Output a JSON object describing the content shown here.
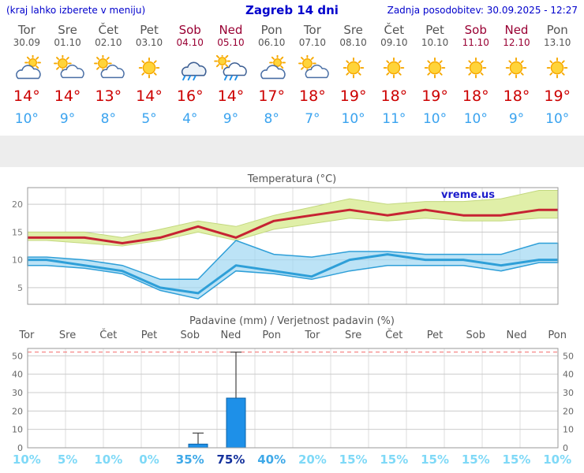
{
  "header": {
    "hint": "(kraj lahko izberete v meniju)",
    "title": "Zagreb 14 dni",
    "last_update": "Zadnja posodobitev: 30.09.2025 - 12:27"
  },
  "colors": {
    "header_blue": "#0000cc",
    "weekday_text": "#555555",
    "weekend_text": "#990033",
    "high_temp": "#cc0000",
    "low_temp": "#3aa3ef",
    "temp_line_high": "#c62333",
    "temp_band_high": "#e0efa8",
    "temp_line_low": "#2e9fd8",
    "temp_band_low": "#9fd7f2",
    "bar_fill": "#1e90e8",
    "prob_low": "#7fd9f7",
    "prob_med": "#3fa9e8",
    "prob_high": "#14319c"
  },
  "forecast": {
    "days": [
      {
        "day": "Tor",
        "date": "30.09",
        "weekend": false,
        "icon": "mostly-cloudy",
        "high": "14°",
        "low": "10°"
      },
      {
        "day": "Sre",
        "date": "01.10",
        "weekend": false,
        "icon": "partly-sunny",
        "high": "14°",
        "low": "9°"
      },
      {
        "day": "Čet",
        "date": "02.10",
        "weekend": false,
        "icon": "partly-sunny",
        "high": "13°",
        "low": "8°"
      },
      {
        "day": "Pet",
        "date": "03.10",
        "weekend": false,
        "icon": "sunny",
        "high": "14°",
        "low": "5°"
      },
      {
        "day": "Sob",
        "date": "04.10",
        "weekend": true,
        "icon": "rain",
        "high": "16°",
        "low": "4°"
      },
      {
        "day": "Ned",
        "date": "05.10",
        "weekend": true,
        "icon": "rain-sun",
        "high": "14°",
        "low": "9°"
      },
      {
        "day": "Pon",
        "date": "06.10",
        "weekend": false,
        "icon": "mostly-cloudy",
        "high": "17°",
        "low": "8°"
      },
      {
        "day": "Tor",
        "date": "07.10",
        "weekend": false,
        "icon": "partly-sunny",
        "high": "18°",
        "low": "7°"
      },
      {
        "day": "Sre",
        "date": "08.10",
        "weekend": false,
        "icon": "sunny",
        "high": "19°",
        "low": "10°"
      },
      {
        "day": "Čet",
        "date": "09.10",
        "weekend": false,
        "icon": "sunny",
        "high": "18°",
        "low": "11°"
      },
      {
        "day": "Pet",
        "date": "10.10",
        "weekend": false,
        "icon": "sunny",
        "high": "19°",
        "low": "10°"
      },
      {
        "day": "Sob",
        "date": "11.10",
        "weekend": true,
        "icon": "sunny",
        "high": "18°",
        "low": "10°"
      },
      {
        "day": "Ned",
        "date": "12.10",
        "weekend": true,
        "icon": "sunny",
        "high": "18°",
        "low": "9°"
      },
      {
        "day": "Pon",
        "date": "13.10",
        "weekend": false,
        "icon": "sunny",
        "high": "19°",
        "low": "10°"
      }
    ]
  },
  "chart_data": [
    {
      "type": "line",
      "title": "Temperatura (°C)",
      "watermark": "vreme.us",
      "yticks": [
        5,
        10,
        15,
        20
      ],
      "ylim": [
        2,
        23
      ],
      "grid": true,
      "series": [
        {
          "name": "high",
          "values": [
            14,
            14,
            13,
            14,
            16,
            14,
            17,
            18,
            19,
            18,
            19,
            18,
            18,
            19
          ]
        },
        {
          "name": "high_band_upper",
          "values": [
            15,
            15,
            14,
            15.5,
            17,
            16,
            18,
            19.5,
            21,
            20,
            20.5,
            20.5,
            21,
            22.5
          ]
        },
        {
          "name": "high_band_lower",
          "values": [
            13.5,
            13,
            12.5,
            13.5,
            15,
            13.5,
            15.5,
            16.5,
            17.5,
            17,
            17.5,
            17,
            17,
            17.5
          ]
        },
        {
          "name": "low",
          "values": [
            10,
            9,
            8,
            5,
            4,
            9,
            8,
            7,
            10,
            11,
            10,
            10,
            9,
            10
          ]
        },
        {
          "name": "low_band_upper",
          "values": [
            10.5,
            10,
            9,
            6.5,
            6.5,
            13.5,
            11,
            10.5,
            11.5,
            11.5,
            11,
            11,
            11,
            13
          ]
        },
        {
          "name": "low_band_lower",
          "values": [
            9,
            8.5,
            7.5,
            4.5,
            3,
            8,
            7.5,
            6.5,
            8,
            9,
            9,
            9,
            8,
            9.5
          ]
        }
      ]
    },
    {
      "type": "bar",
      "title": "Padavine (mm) / Verjetnost padavin (%)",
      "categories": [
        "Tor",
        "Sre",
        "Čet",
        "Pet",
        "Sob",
        "Ned",
        "Pon",
        "Tor",
        "Sre",
        "Čet",
        "Pet",
        "Sob",
        "Ned",
        "Pon"
      ],
      "weekend_flags": [
        false,
        false,
        false,
        false,
        true,
        true,
        false,
        false,
        false,
        false,
        false,
        true,
        true,
        false
      ],
      "values": [
        0,
        0,
        0,
        0,
        2,
        27,
        0,
        0,
        0,
        0,
        0,
        0,
        0,
        0
      ],
      "whiskers": [
        0,
        0,
        0,
        0,
        8,
        52,
        0,
        0,
        0,
        0,
        0,
        0,
        0,
        0
      ],
      "yticks": [
        0,
        10,
        20,
        30,
        40,
        50
      ],
      "ylim": [
        0,
        54
      ],
      "dashed_line_y": 52,
      "grid": true,
      "probabilities": [
        {
          "label": "10%",
          "emphasis": "low"
        },
        {
          "label": "5%",
          "emphasis": "low"
        },
        {
          "label": "10%",
          "emphasis": "low"
        },
        {
          "label": "0%",
          "emphasis": "low"
        },
        {
          "label": "35%",
          "emphasis": "med"
        },
        {
          "label": "75%",
          "emphasis": "high"
        },
        {
          "label": "40%",
          "emphasis": "med"
        },
        {
          "label": "20%",
          "emphasis": "low"
        },
        {
          "label": "15%",
          "emphasis": "low"
        },
        {
          "label": "15%",
          "emphasis": "low"
        },
        {
          "label": "15%",
          "emphasis": "low"
        },
        {
          "label": "15%",
          "emphasis": "low"
        },
        {
          "label": "15%",
          "emphasis": "low"
        },
        {
          "label": "10%",
          "emphasis": "low"
        }
      ]
    }
  ]
}
